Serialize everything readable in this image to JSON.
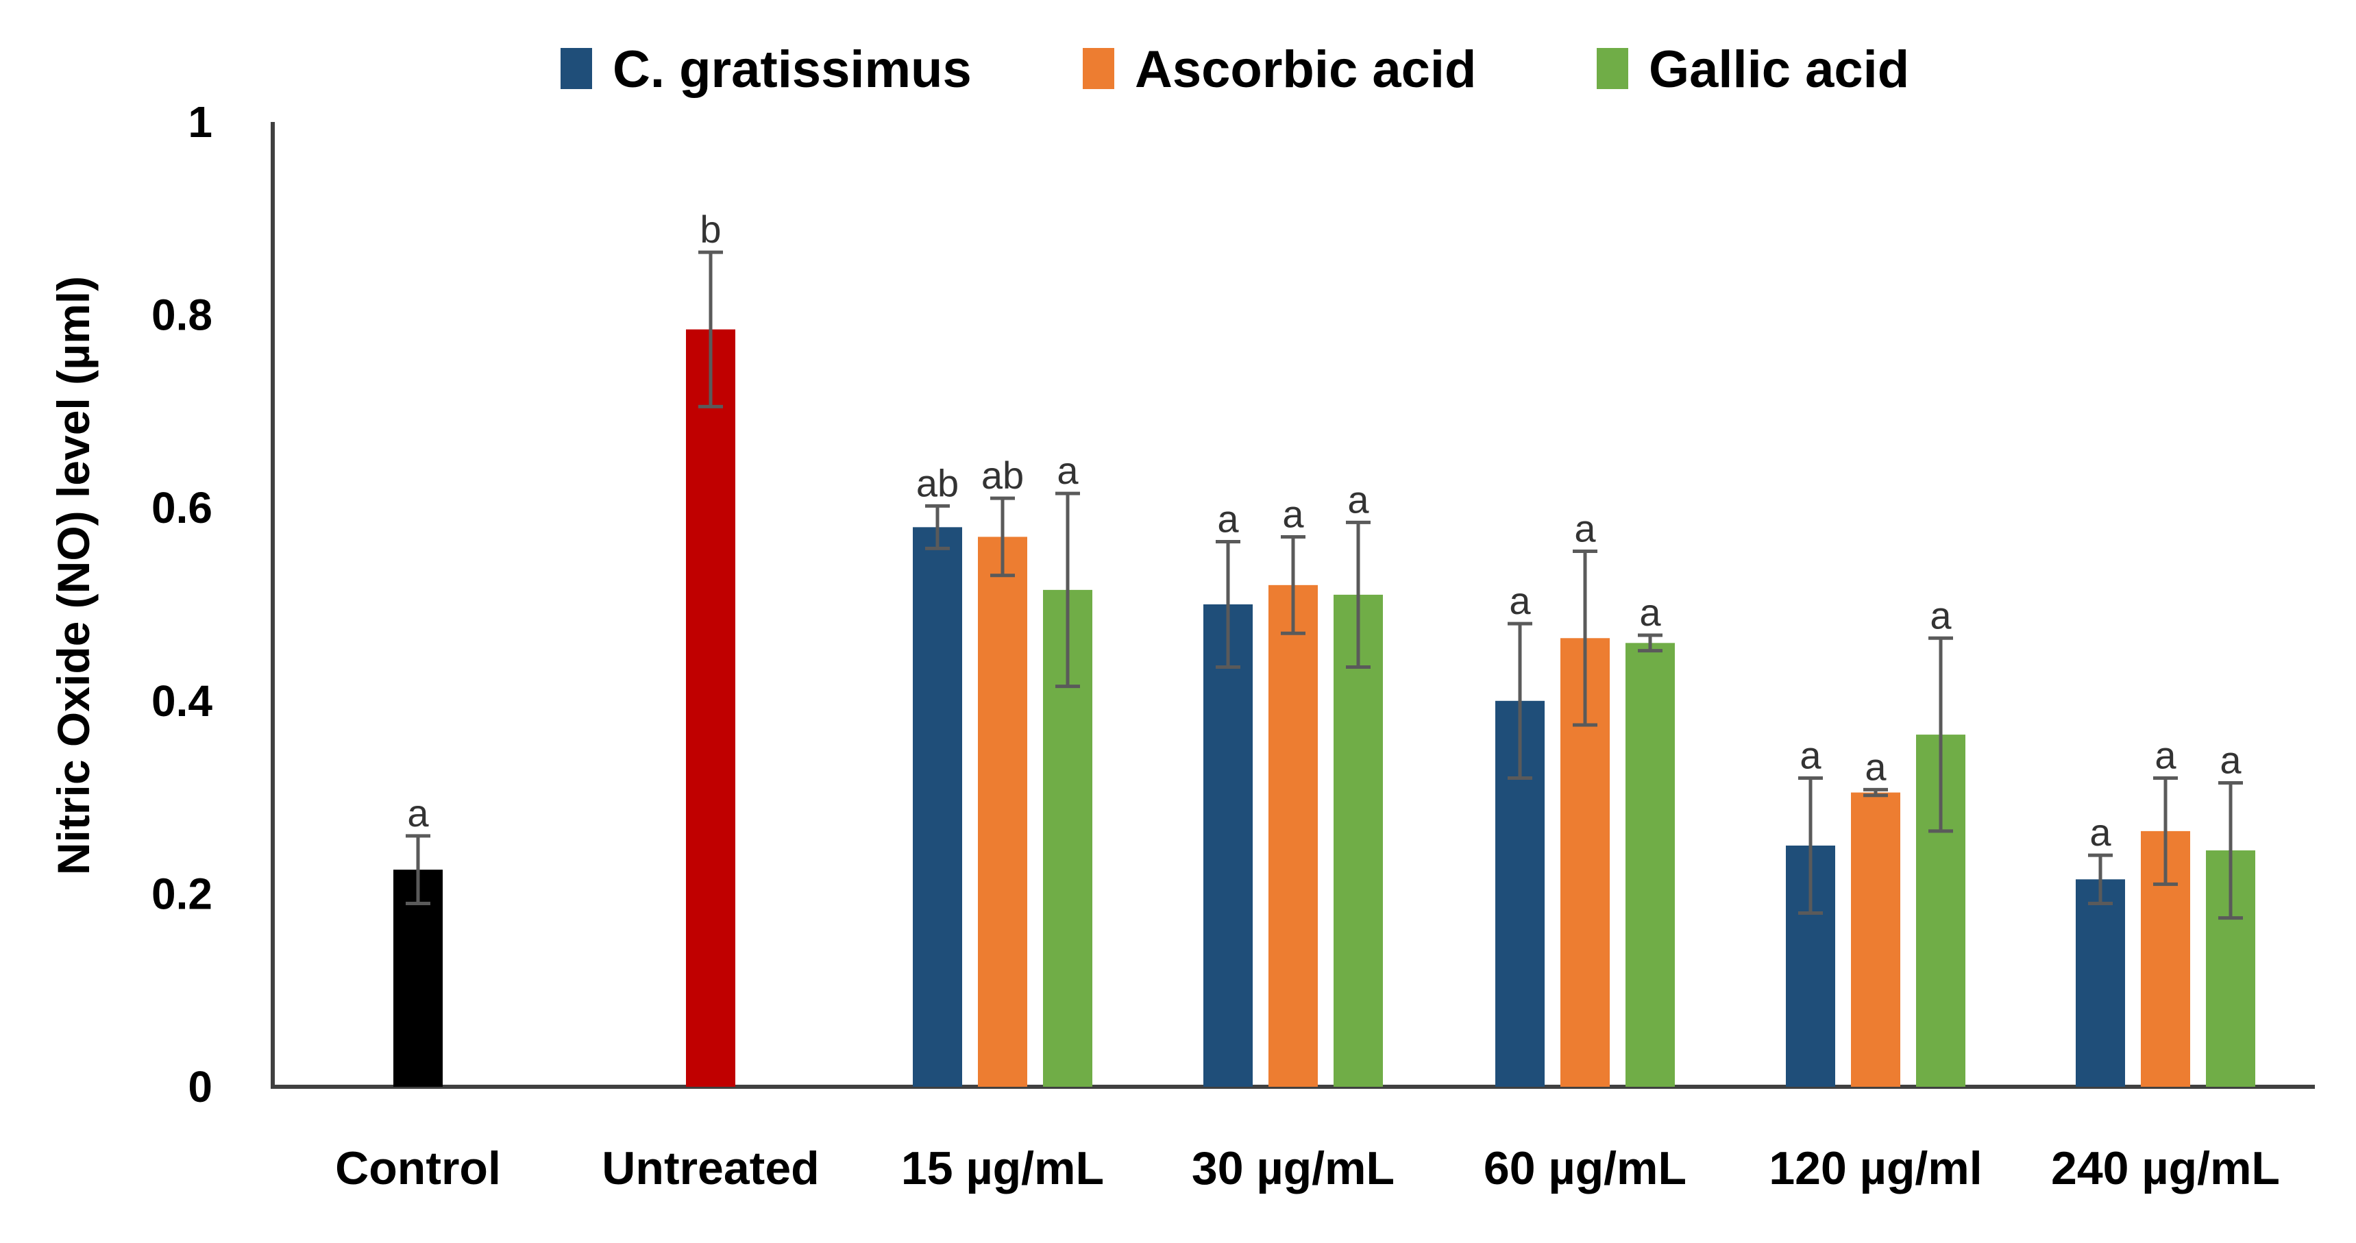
{
  "chart_data": {
    "type": "bar",
    "ylabel": "Nitric Oxide (NO) level (µml)",
    "ylim": [
      0,
      1
    ],
    "yticks": [
      "0",
      "0.2",
      "0.4",
      "0.6",
      "0.8",
      "1"
    ],
    "ytick_values": [
      0,
      0.2,
      0.4,
      0.6,
      0.8,
      1
    ],
    "legend_position": "top",
    "categories": [
      "Control",
      "Untreated",
      "15 µg/mL",
      "30 µg/mL",
      "60 µg/mL",
      "120 µg/ml",
      "240 µg/mL"
    ],
    "series": [
      {
        "name": "C. gratissimus",
        "color": "#1f4e79",
        "values": [
          null,
          null,
          0.58,
          0.5,
          0.4,
          0.25,
          0.215
        ],
        "errors": [
          null,
          null,
          0.022,
          0.065,
          0.08,
          0.07,
          0.025
        ],
        "labels": [
          null,
          null,
          "ab",
          "a",
          "a",
          "a",
          "a"
        ]
      },
      {
        "name": "Ascorbic acid",
        "color": "#ed7d31",
        "values": [
          null,
          null,
          0.57,
          0.52,
          0.465,
          0.305,
          0.265
        ],
        "errors": [
          null,
          null,
          0.04,
          0.05,
          0.09,
          0.003,
          0.055
        ],
        "labels": [
          null,
          null,
          "ab",
          "a",
          "a",
          "a",
          "a"
        ]
      },
      {
        "name": "Gallic acid",
        "color": "#70ad47",
        "values": [
          null,
          null,
          0.515,
          0.51,
          0.46,
          0.365,
          0.245
        ],
        "errors": [
          null,
          null,
          0.1,
          0.075,
          0.008,
          0.1,
          0.07
        ],
        "labels": [
          null,
          null,
          "a",
          "a",
          "a",
          "a",
          "a"
        ]
      }
    ],
    "single_bars": [
      {
        "category": "Control",
        "value": 0.225,
        "error": 0.035,
        "label": "a",
        "color": "#000000"
      },
      {
        "category": "Untreated",
        "value": 0.785,
        "error": 0.08,
        "label": "b",
        "color": "#c00000"
      }
    ]
  }
}
